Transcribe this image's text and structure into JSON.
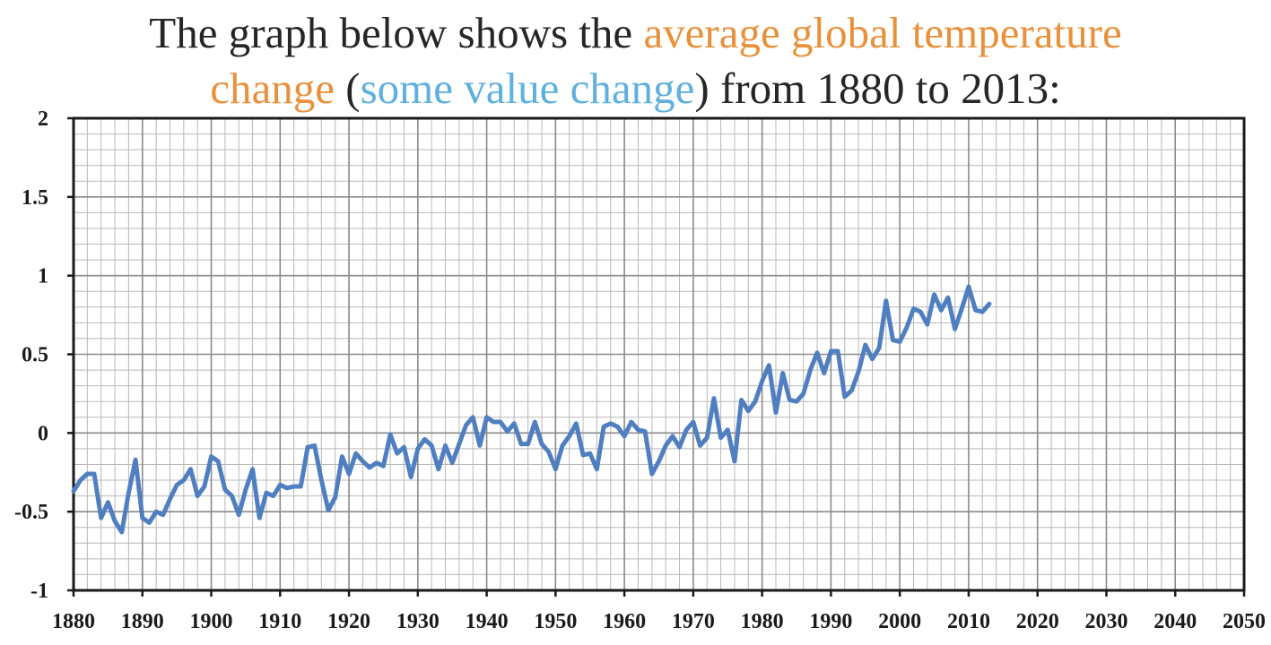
{
  "title": {
    "line1_prefix": "The graph below shows the ",
    "line1_highlight": "average global temperature",
    "line2_highlight": "change",
    "line2_open_paren": " (",
    "line2_secondary": "some value change",
    "line2_suffix": ") from 1880 to 2013:"
  },
  "colors": {
    "line": "#4f7fc1",
    "orange_text": "#e8913a",
    "blue_text": "#5fb0df",
    "grid": "#b8b8b8",
    "axis": "#1a1a1a"
  },
  "chart_data": {
    "type": "line",
    "title": "",
    "xlabel": "",
    "ylabel": "",
    "xlim": [
      1880,
      2050
    ],
    "ylim": [
      -1,
      2
    ],
    "grid": true,
    "x_ticks": [
      "1880",
      "1890",
      "1900",
      "1910",
      "1920",
      "1930",
      "1940",
      "1950",
      "1960",
      "1970",
      "1980",
      "1990",
      "2000",
      "2010",
      "2020",
      "2030",
      "2040",
      "2050"
    ],
    "y_ticks": [
      "2",
      "1.5",
      "1",
      "0.5",
      "0",
      "-0.5",
      "-1"
    ],
    "series": [
      {
        "x": [
          1880,
          1881,
          1882,
          1883,
          1884,
          1885,
          1886,
          1887,
          1888,
          1889,
          1890,
          1891,
          1892,
          1893,
          1894,
          1895,
          1896,
          1897,
          1898,
          1899,
          1900,
          1901,
          1902,
          1903,
          1904,
          1905,
          1906,
          1907,
          1908,
          1909,
          1910,
          1911,
          1912,
          1913,
          1914,
          1915,
          1916,
          1917,
          1918,
          1919,
          1920,
          1921,
          1922,
          1923,
          1924,
          1925,
          1926,
          1927,
          1928,
          1929,
          1930,
          1931,
          1932,
          1933,
          1934,
          1935,
          1936,
          1937,
          1938,
          1939,
          1940,
          1941,
          1942,
          1943,
          1944,
          1945,
          1946,
          1947,
          1948,
          1949,
          1950,
          1951,
          1952,
          1953,
          1954,
          1955,
          1956,
          1957,
          1958,
          1959,
          1960,
          1961,
          1962,
          1963,
          1964,
          1965,
          1966,
          1967,
          1968,
          1969,
          1970,
          1971,
          1972,
          1973,
          1974,
          1975,
          1976,
          1977,
          1978,
          1979,
          1980,
          1981,
          1982,
          1983,
          1984,
          1985,
          1986,
          1987,
          1988,
          1989,
          1990,
          1991,
          1992,
          1993,
          1994,
          1995,
          1996,
          1997,
          1998,
          1999,
          2000,
          2001,
          2002,
          2003,
          2004,
          2005,
          2006,
          2007,
          2008,
          2009,
          2010,
          2011,
          2012,
          2013
        ],
        "values": [
          -0.37,
          -0.3,
          -0.26,
          -0.26,
          -0.54,
          -0.44,
          -0.56,
          -0.63,
          -0.38,
          -0.17,
          -0.54,
          -0.57,
          -0.5,
          -0.52,
          -0.42,
          -0.33,
          -0.3,
          -0.23,
          -0.4,
          -0.34,
          -0.15,
          -0.18,
          -0.36,
          -0.4,
          -0.52,
          -0.36,
          -0.23,
          -0.54,
          -0.38,
          -0.4,
          -0.33,
          -0.35,
          -0.34,
          -0.34,
          -0.09,
          -0.08,
          -0.3,
          -0.49,
          -0.41,
          -0.15,
          -0.26,
          -0.13,
          -0.18,
          -0.22,
          -0.19,
          -0.21,
          -0.01,
          -0.13,
          -0.09,
          -0.28,
          -0.1,
          -0.04,
          -0.08,
          -0.23,
          -0.08,
          -0.19,
          -0.07,
          0.05,
          0.1,
          -0.08,
          0.1,
          0.07,
          0.07,
          0.01,
          0.06,
          -0.07,
          -0.07,
          0.07,
          -0.07,
          -0.12,
          -0.23,
          -0.08,
          -0.02,
          0.06,
          -0.14,
          -0.13,
          -0.23,
          0.04,
          0.06,
          0.04,
          -0.02,
          0.07,
          0.02,
          0.01,
          -0.26,
          -0.18,
          -0.08,
          -0.02,
          -0.09,
          0.02,
          0.07,
          -0.08,
          -0.03,
          0.22,
          -0.03,
          0.02,
          -0.18,
          0.21,
          0.14,
          0.2,
          0.33,
          0.43,
          0.13,
          0.38,
          0.21,
          0.2,
          0.25,
          0.4,
          0.51,
          0.38,
          0.52,
          0.52,
          0.23,
          0.27,
          0.39,
          0.56,
          0.47,
          0.54,
          0.84,
          0.59,
          0.58,
          0.67,
          0.79,
          0.77,
          0.69,
          0.88,
          0.78,
          0.86,
          0.66,
          0.79,
          0.93,
          0.78,
          0.77,
          0.82
        ]
      }
    ]
  }
}
